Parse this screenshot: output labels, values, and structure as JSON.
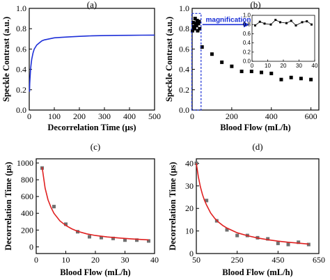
{
  "chart_data": [
    {
      "panel": "(a)",
      "type": "line",
      "xlabel": "Decorrelation Time (μs)",
      "ylabel": "Speckle Contrast (a.u.)",
      "xlim": [
        0,
        500
      ],
      "ylim": [
        0,
        1.0
      ],
      "xticks": [
        0,
        100,
        200,
        300,
        400,
        500
      ],
      "yticks": [
        0.0,
        0.2,
        0.4,
        0.6,
        0.8,
        1.0
      ],
      "series": [
        {
          "color": "#1d2fd8",
          "x": [
            1,
            2,
            3,
            5,
            7,
            10,
            15,
            20,
            25,
            30,
            40,
            50,
            60,
            80,
            100,
            130,
            160,
            200,
            250,
            300,
            350,
            400,
            450,
            500
          ],
          "y": [
            0.18,
            0.26,
            0.31,
            0.39,
            0.44,
            0.5,
            0.56,
            0.6,
            0.62,
            0.64,
            0.66,
            0.68,
            0.69,
            0.7,
            0.71,
            0.715,
            0.72,
            0.725,
            0.73,
            0.732,
            0.734,
            0.735,
            0.736,
            0.737
          ]
        }
      ]
    },
    {
      "panel": "(b)",
      "type": "scatter",
      "xlabel": "Blood Flow (mL/h)",
      "ylabel": "Speckle Contrast (a.u.)",
      "xlim": [
        0,
        640
      ],
      "ylim": [
        0,
        1.0
      ],
      "xticks": [
        0,
        200,
        400,
        600
      ],
      "yticks": [
        0.0,
        0.2,
        0.4,
        0.6,
        0.8,
        1.0
      ],
      "series": [
        {
          "color": "#000000",
          "x": [
            2,
            5,
            8,
            12,
            15,
            18,
            22,
            25,
            28,
            32,
            35,
            38,
            50,
            100,
            150,
            200,
            250,
            300,
            350,
            400,
            450,
            500,
            550,
            600
          ],
          "y": [
            0.78,
            0.86,
            0.82,
            0.8,
            0.9,
            0.85,
            0.83,
            0.88,
            0.78,
            0.85,
            0.87,
            0.8,
            0.62,
            0.55,
            0.47,
            0.43,
            0.38,
            0.38,
            0.37,
            0.36,
            0.3,
            0.32,
            0.31,
            0.3
          ]
        }
      ],
      "annotation": "magnification",
      "inset": {
        "xlim": [
          0,
          40
        ],
        "ylim": [
          0,
          1.0
        ],
        "xticks": [
          0,
          10,
          20,
          30,
          40
        ],
        "yticks": [
          0.0,
          0.2,
          0.4,
          0.6,
          0.8,
          1.0
        ],
        "x": [
          2,
          5,
          8,
          12,
          15,
          18,
          22,
          25,
          28,
          32,
          35,
          38
        ],
        "y": [
          0.78,
          0.86,
          0.82,
          0.8,
          0.9,
          0.85,
          0.83,
          0.88,
          0.78,
          0.85,
          0.87,
          0.8
        ]
      }
    },
    {
      "panel": "(c)",
      "type": "scatter",
      "xlabel": "Blood Flow (mL/h)",
      "ylabel": "Decorrelation Time (μs)",
      "xlim": [
        0,
        40
      ],
      "ylim": [
        -80,
        1050
      ],
      "xticks": [
        0,
        10,
        20,
        30,
        40
      ],
      "yticks": [
        0,
        200,
        400,
        600,
        800,
        1000
      ],
      "series": [
        {
          "color": "#707070",
          "x": [
            2,
            6,
            10,
            14,
            18,
            22,
            26,
            30,
            34,
            38
          ],
          "y": [
            940,
            480,
            270,
            180,
            120,
            110,
            100,
            80,
            80,
            70
          ]
        }
      ],
      "fit": {
        "color": "#e02020",
        "x": [
          2,
          3,
          4,
          5,
          6,
          8,
          10,
          12,
          14,
          17,
          20,
          24,
          28,
          32,
          36,
          38
        ],
        "y": [
          950,
          700,
          560,
          470,
          400,
          310,
          255,
          215,
          185,
          155,
          135,
          118,
          105,
          95,
          87,
          83
        ]
      }
    },
    {
      "panel": "(d)",
      "type": "scatter",
      "xlabel": "Blood Flow (mL/h)",
      "ylabel": "Decorrelation Time (μs)",
      "xlim": [
        50,
        650
      ],
      "ylim": [
        0,
        42
      ],
      "xticks": [
        50,
        250,
        450,
        650
      ],
      "yticks": [
        0,
        10,
        20,
        30,
        40
      ],
      "series": [
        {
          "color": "#707070",
          "x": [
            50,
            100,
            150,
            200,
            250,
            300,
            350,
            400,
            450,
            500,
            550,
            600
          ],
          "y": [
            40,
            23.5,
            14.5,
            10.5,
            8,
            8,
            7,
            6.5,
            4.5,
            4,
            5,
            4
          ]
        }
      ],
      "fit": {
        "color": "#e02020",
        "x": [
          50,
          60,
          70,
          80,
          90,
          100,
          120,
          140,
          160,
          180,
          200,
          250,
          300,
          350,
          400,
          450,
          500,
          550,
          600
        ],
        "y": [
          40,
          34,
          29.5,
          26.2,
          23.6,
          21.5,
          18,
          15.6,
          13.8,
          12.4,
          11.3,
          9.2,
          7.9,
          6.9,
          6.1,
          5.5,
          5.0,
          4.6,
          4.2
        ]
      }
    }
  ]
}
